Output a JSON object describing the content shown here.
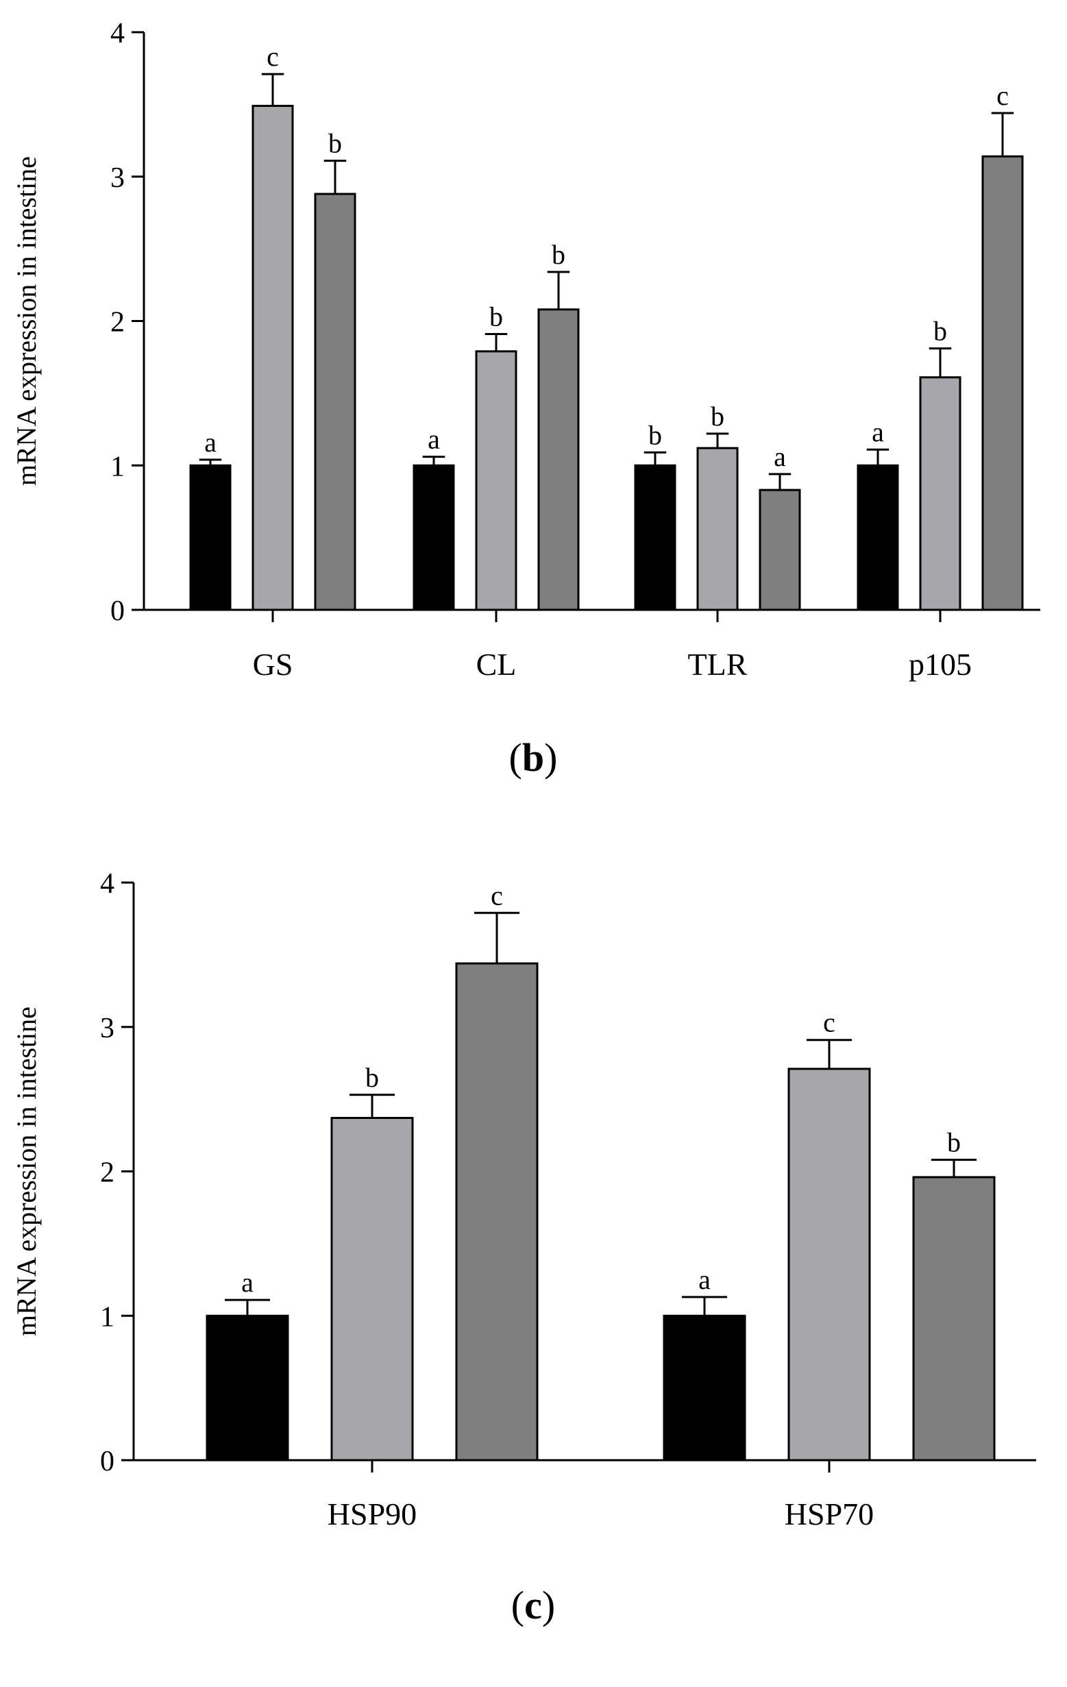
{
  "chart_data": [
    {
      "type": "bar",
      "panel": "(b)",
      "panel_letter": "b",
      "ylabel": "mRNA expression in intestine",
      "ylim": [
        0,
        4
      ],
      "yticks": [
        0,
        1,
        2,
        3,
        4
      ],
      "categories": [
        "GS",
        "CL",
        "TLR",
        "p105"
      ],
      "series": [
        {
          "color": "#000000",
          "values": [
            1.0,
            1.0,
            1.0,
            1.0
          ],
          "errors": [
            0.04,
            0.06,
            0.09,
            0.11
          ],
          "labels": [
            "a",
            "a",
            "b",
            "a"
          ]
        },
        {
          "color": "#a7a7ab",
          "values": [
            3.49,
            1.79,
            1.12,
            1.61
          ],
          "errors": [
            0.22,
            0.12,
            0.1,
            0.2
          ],
          "labels": [
            "c",
            "b",
            "b",
            "b"
          ]
        },
        {
          "color": "#7f7f7f",
          "values": [
            2.88,
            2.08,
            0.83,
            3.14
          ],
          "errors": [
            0.23,
            0.26,
            0.11,
            0.3
          ],
          "labels": [
            "b",
            "b",
            "a",
            "c"
          ]
        }
      ]
    },
    {
      "type": "bar",
      "panel": "(c)",
      "panel_letter": "c",
      "ylabel": "mRNA expression in intestine",
      "ylim": [
        0,
        4
      ],
      "yticks": [
        0,
        1,
        2,
        3,
        4
      ],
      "categories": [
        "HSP90",
        "HSP70"
      ],
      "series": [
        {
          "color": "#000000",
          "values": [
            1.0,
            1.0
          ],
          "errors": [
            0.11,
            0.13
          ],
          "labels": [
            "a",
            "a"
          ]
        },
        {
          "color": "#a7a7ab",
          "values": [
            2.37,
            2.71
          ],
          "errors": [
            0.16,
            0.2
          ],
          "labels": [
            "b",
            "c"
          ]
        },
        {
          "color": "#7f7f7f",
          "values": [
            3.44,
            1.96
          ],
          "errors": [
            0.35,
            0.12
          ],
          "labels": [
            "c",
            "b"
          ]
        }
      ]
    }
  ]
}
